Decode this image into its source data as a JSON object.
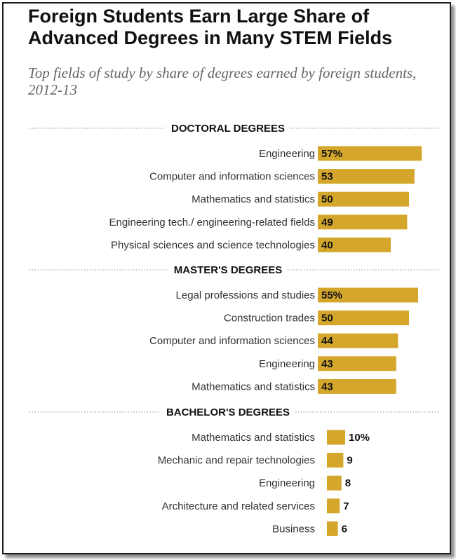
{
  "title": "Foreign Students Earn Large Share of Advanced Degrees in Many STEM Fields",
  "subtitle": "Top fields of study by share of degrees earned by foreign students, 2012-13",
  "colors": {
    "bar": "#d4a72c"
  },
  "chart_data": {
    "type": "bar",
    "orientation": "horizontal",
    "title": "Foreign Students Earn Large Share of Advanced Degrees in Many STEM Fields",
    "subtitle": "Top fields of study by share of degrees earned by foreign students, 2012-13",
    "xlim": [
      0,
      60
    ],
    "grid": false,
    "groups": [
      {
        "name": "DOCTORAL DEGREES",
        "categories": [
          "Engineering",
          "Computer and information sciences",
          "Mathematics and statistics",
          "Engineering tech./ engineering-related fields",
          "Physical sciences and science technologies"
        ],
        "values": [
          57,
          53,
          50,
          49,
          40
        ],
        "labels": [
          "57%",
          "53",
          "50",
          "49",
          "40"
        ]
      },
      {
        "name": "MASTER'S DEGREES",
        "categories": [
          "Legal professions and studies",
          "Construction trades",
          "Computer and information sciences",
          "Engineering",
          "Mathematics and statistics"
        ],
        "values": [
          55,
          50,
          44,
          43,
          43
        ],
        "labels": [
          "55%",
          "50",
          "44",
          "43",
          "43"
        ]
      },
      {
        "name": "BACHELOR'S DEGREES",
        "categories": [
          "Mathematics and statistics",
          "Mechanic and repair technologies",
          "Engineering",
          "Architecture and related services",
          "Business"
        ],
        "values": [
          10,
          9,
          8,
          7,
          6
        ],
        "labels": [
          "10%",
          "9",
          "8",
          "7",
          "6"
        ]
      }
    ]
  }
}
